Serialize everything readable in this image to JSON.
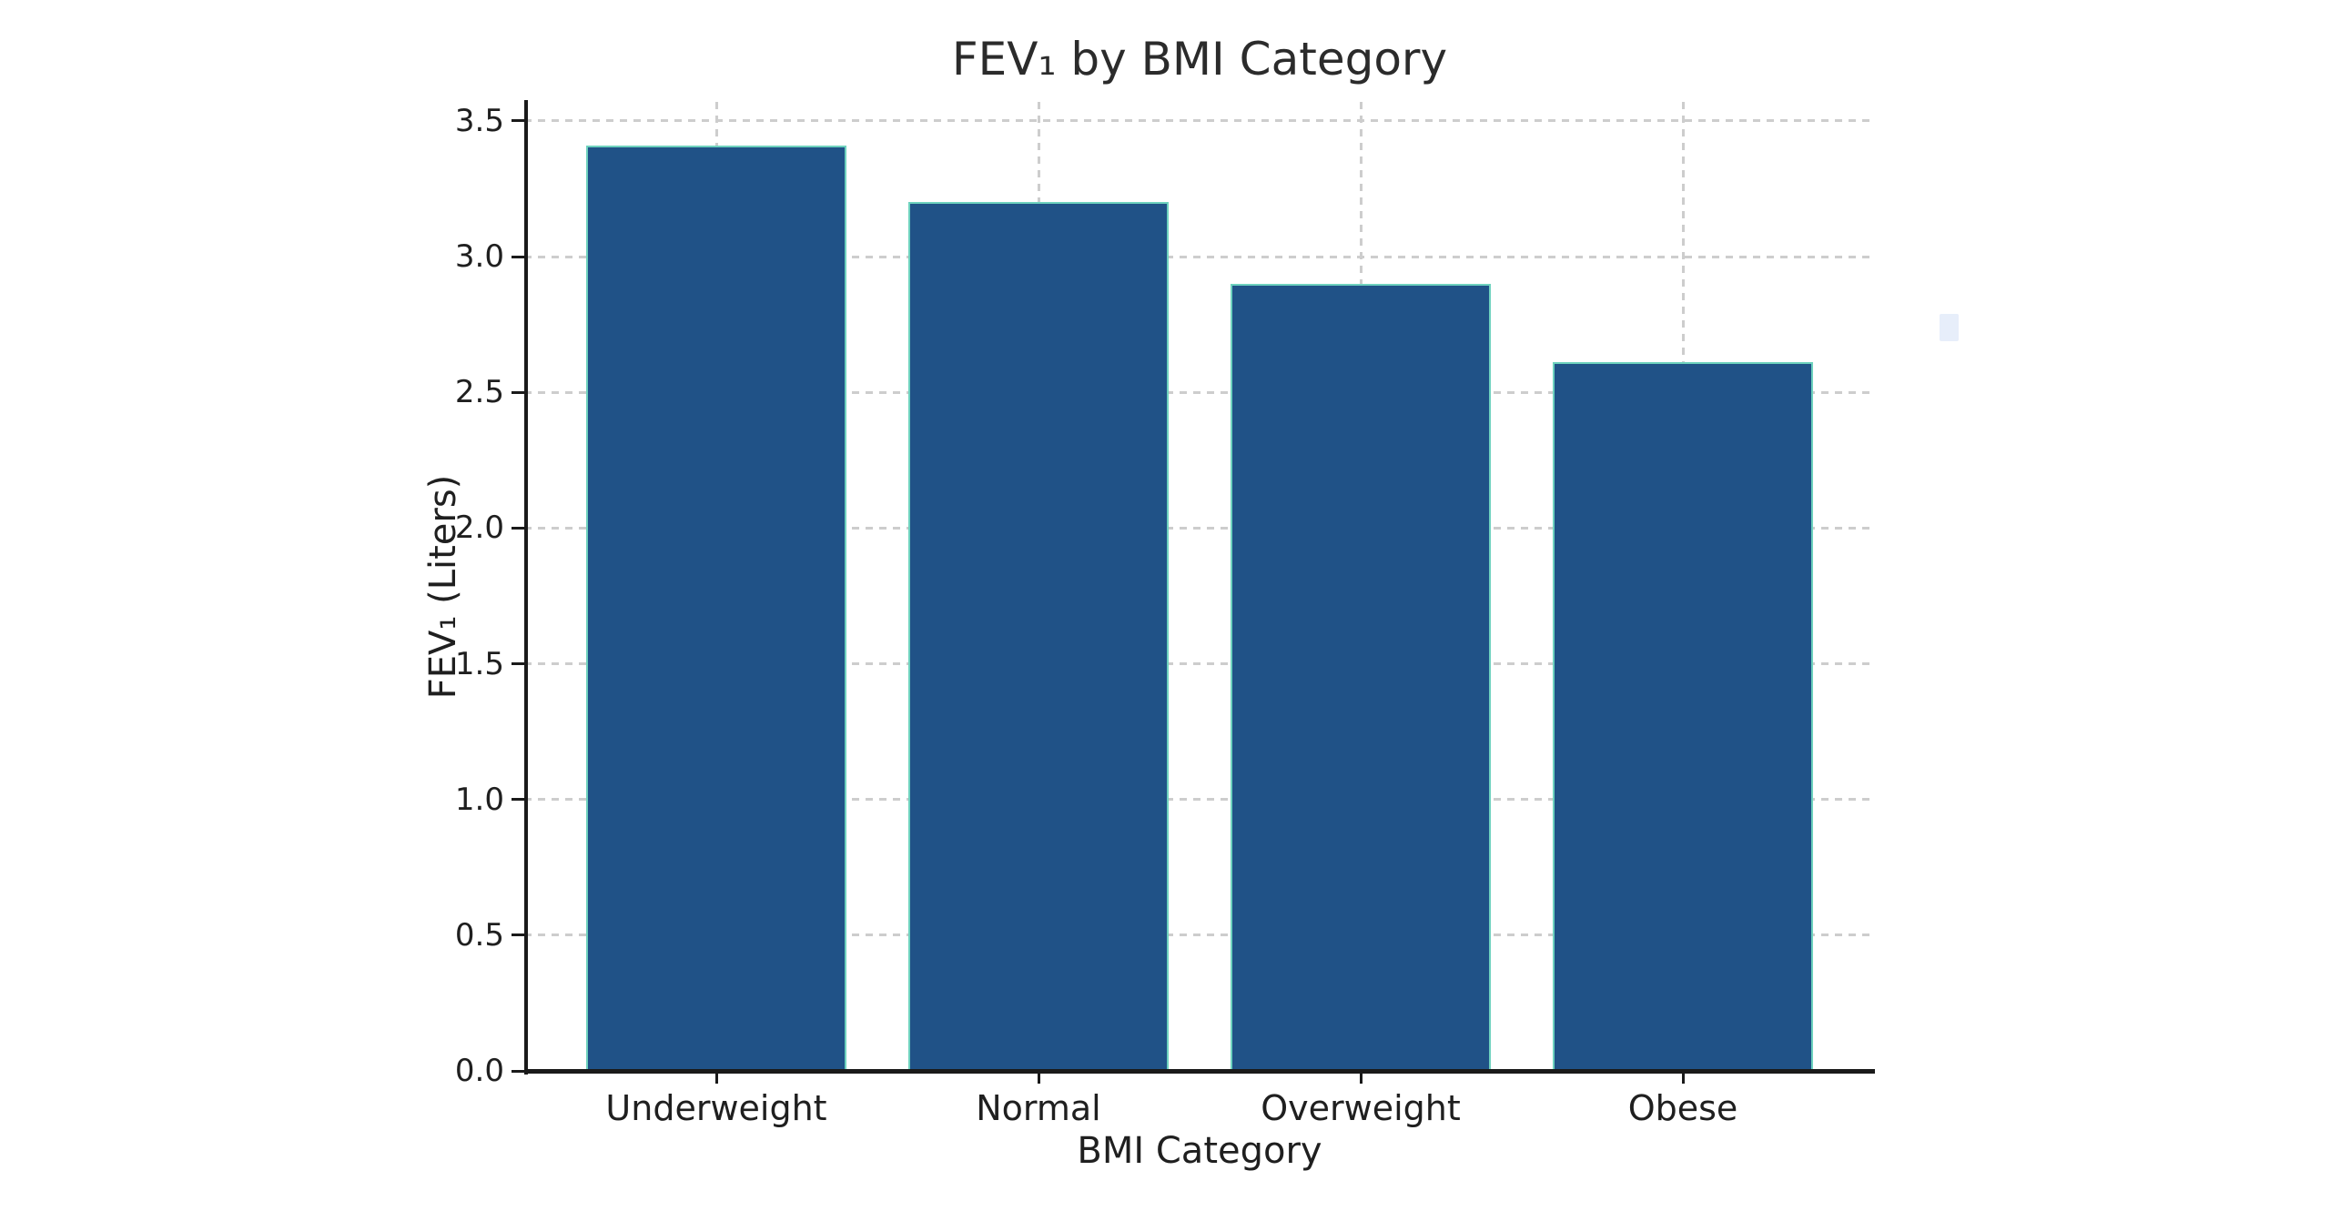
{
  "chart_data": {
    "type": "bar",
    "title": "FEV₁ by BMI Category",
    "xlabel": "BMI Category",
    "ylabel": "FEV₁ (Liters)",
    "categories": [
      "Underweight",
      "Normal",
      "Overweight",
      "Obese"
    ],
    "values": [
      3.41,
      3.2,
      2.9,
      2.61
    ],
    "ylim": [
      0,
      3.57
    ],
    "ytick_labels": [
      "0.0",
      "0.5",
      "1.0",
      "1.5",
      "2.0",
      "2.5",
      "3.0",
      "3.5"
    ],
    "grid": "dashed gridlines, horizontal and vertical",
    "legend": "none",
    "bar_color": "#205287",
    "bar_edge_color": "#6ed2be",
    "axis_color": "#1a1a1a",
    "background": "#ffffff"
  },
  "artifact": {
    "description": "small pale-blue highlight square right of plot",
    "color": "#e7eefa"
  }
}
